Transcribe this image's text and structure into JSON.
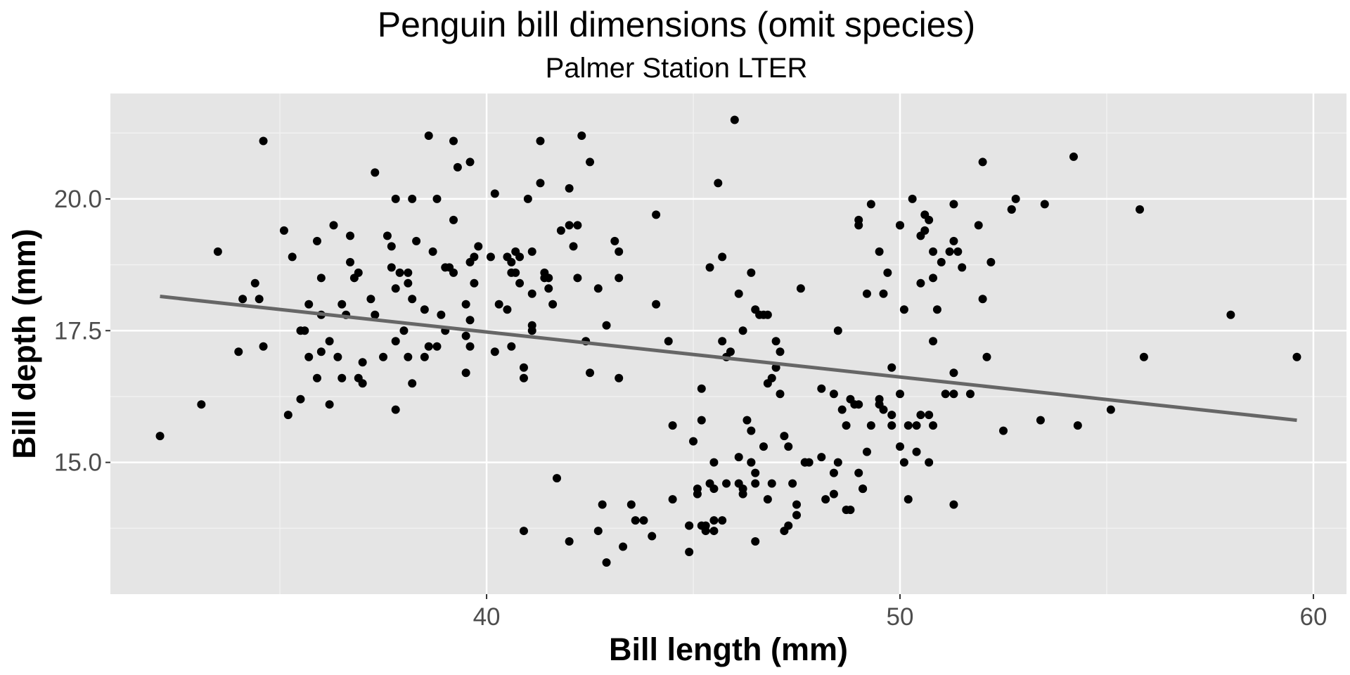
{
  "chart_data": {
    "type": "scatter",
    "title": "Penguin bill dimensions (omit species)",
    "subtitle": "Palmer Station LTER",
    "xlabel": "Bill length (mm)",
    "ylabel": "Bill depth (mm)",
    "xlim": [
      30.9,
      60.8
    ],
    "ylim": [
      12.5,
      22.0
    ],
    "x_ticks": [
      40,
      50,
      60
    ],
    "x_tick_labels": [
      "40",
      "50",
      "60"
    ],
    "y_ticks": [
      15.0,
      17.5,
      20.0
    ],
    "y_tick_labels": [
      "15.0",
      "17.5",
      "20.0"
    ],
    "grid": true,
    "colors": {
      "panel_background": "#e5e5e5",
      "grid_major": "#ffffff",
      "grid_minor": "#f2f2f2",
      "points": "#000000",
      "trend_line": "#666666",
      "tick_text": "#4d4d4d",
      "tick_mark": "#333333"
    },
    "trend_line": {
      "x": [
        32.1,
        59.6
      ],
      "y": [
        18.15,
        15.8
      ]
    },
    "points": [
      [
        32.1,
        15.5
      ],
      [
        33.1,
        16.1
      ],
      [
        33.5,
        19.0
      ],
      [
        34.0,
        17.1
      ],
      [
        34.1,
        18.1
      ],
      [
        34.4,
        18.4
      ],
      [
        34.5,
        18.1
      ],
      [
        34.6,
        21.1
      ],
      [
        34.6,
        17.2
      ],
      [
        35.1,
        19.4
      ],
      [
        35.2,
        15.9
      ],
      [
        35.3,
        18.9
      ],
      [
        35.5,
        16.2
      ],
      [
        35.5,
        17.5
      ],
      [
        35.6,
        17.5
      ],
      [
        35.7,
        18.0
      ],
      [
        35.7,
        17.0
      ],
      [
        35.9,
        19.2
      ],
      [
        36.0,
        18.5
      ],
      [
        36.0,
        17.1
      ],
      [
        36.0,
        17.8
      ],
      [
        36.2,
        16.1
      ],
      [
        36.2,
        17.3
      ],
      [
        36.3,
        19.5
      ],
      [
        36.4,
        17.0
      ],
      [
        36.5,
        18.0
      ],
      [
        36.6,
        17.8
      ],
      [
        36.7,
        18.8
      ],
      [
        36.7,
        19.3
      ],
      [
        36.8,
        18.5
      ],
      [
        36.9,
        18.6
      ],
      [
        37.0,
        16.9
      ],
      [
        37.0,
        16.5
      ],
      [
        37.2,
        18.1
      ],
      [
        37.3,
        20.5
      ],
      [
        37.3,
        17.8
      ],
      [
        37.6,
        19.3
      ],
      [
        37.7,
        18.7
      ],
      [
        37.7,
        19.1
      ],
      [
        37.8,
        20.0
      ],
      [
        37.8,
        18.3
      ],
      [
        37.8,
        17.3
      ],
      [
        37.9,
        18.6
      ],
      [
        38.1,
        18.6
      ],
      [
        38.1,
        17.0
      ],
      [
        38.2,
        18.1
      ],
      [
        38.2,
        20.0
      ],
      [
        38.3,
        19.2
      ],
      [
        38.5,
        17.9
      ],
      [
        38.6,
        21.2
      ],
      [
        38.6,
        17.2
      ],
      [
        38.7,
        19.0
      ],
      [
        38.8,
        20.0
      ],
      [
        38.8,
        17.2
      ],
      [
        38.9,
        17.8
      ],
      [
        39.0,
        17.5
      ],
      [
        39.0,
        18.7
      ],
      [
        39.1,
        18.7
      ],
      [
        39.2,
        19.6
      ],
      [
        39.2,
        21.1
      ],
      [
        39.3,
        20.6
      ],
      [
        39.5,
        17.4
      ],
      [
        39.5,
        16.7
      ],
      [
        39.6,
        20.7
      ],
      [
        39.6,
        17.7
      ],
      [
        39.7,
        18.9
      ],
      [
        39.8,
        19.1
      ],
      [
        40.1,
        18.9
      ],
      [
        40.2,
        17.1
      ],
      [
        40.2,
        20.1
      ],
      [
        40.3,
        18.0
      ],
      [
        40.5,
        17.9
      ],
      [
        40.6,
        18.8
      ],
      [
        40.6,
        17.2
      ],
      [
        40.7,
        19.0
      ],
      [
        40.8,
        18.4
      ],
      [
        40.9,
        16.6
      ],
      [
        40.9,
        13.7
      ],
      [
        41.0,
        20.0
      ],
      [
        41.1,
        18.2
      ],
      [
        41.1,
        17.5
      ],
      [
        41.1,
        19.0
      ],
      [
        41.3,
        20.3
      ],
      [
        41.3,
        21.1
      ],
      [
        41.4,
        18.6
      ],
      [
        41.5,
        18.5
      ],
      [
        41.6,
        18.0
      ],
      [
        41.7,
        14.7
      ],
      [
        41.8,
        19.4
      ],
      [
        42.0,
        20.2
      ],
      [
        42.0,
        13.5
      ],
      [
        42.1,
        19.1
      ],
      [
        42.2,
        18.5
      ],
      [
        42.3,
        21.2
      ],
      [
        42.4,
        17.3
      ],
      [
        42.5,
        20.7
      ],
      [
        42.5,
        16.7
      ],
      [
        42.7,
        13.7
      ],
      [
        42.7,
        18.3
      ],
      [
        42.8,
        14.2
      ],
      [
        42.9,
        13.1
      ],
      [
        42.9,
        17.6
      ],
      [
        43.2,
        19.0
      ],
      [
        43.2,
        18.5
      ],
      [
        43.2,
        16.6
      ],
      [
        43.3,
        13.4
      ],
      [
        43.5,
        14.2
      ],
      [
        43.6,
        13.9
      ],
      [
        43.8,
        13.9
      ],
      [
        44.0,
        13.6
      ],
      [
        44.1,
        19.7
      ],
      [
        44.1,
        18.0
      ],
      [
        44.4,
        17.3
      ],
      [
        44.5,
        15.7
      ],
      [
        44.5,
        14.3
      ],
      [
        44.9,
        13.8
      ],
      [
        44.9,
        13.3
      ],
      [
        45.0,
        15.4
      ],
      [
        45.1,
        14.5
      ],
      [
        45.2,
        15.8
      ],
      [
        45.2,
        13.8
      ],
      [
        45.2,
        16.4
      ],
      [
        45.3,
        13.8
      ],
      [
        45.4,
        14.6
      ],
      [
        45.4,
        18.7
      ],
      [
        45.5,
        13.7
      ],
      [
        45.5,
        15.0
      ],
      [
        45.6,
        20.3
      ],
      [
        45.7,
        17.3
      ],
      [
        45.7,
        13.9
      ],
      [
        45.8,
        14.6
      ],
      [
        45.9,
        17.1
      ],
      [
        46.0,
        21.5
      ],
      [
        46.1,
        15.1
      ],
      [
        46.1,
        18.2
      ],
      [
        46.2,
        14.5
      ],
      [
        46.2,
        17.5
      ],
      [
        46.4,
        15.0
      ],
      [
        46.4,
        15.6
      ],
      [
        46.5,
        13.5
      ],
      [
        46.5,
        14.8
      ],
      [
        46.6,
        17.8
      ],
      [
        46.7,
        15.3
      ],
      [
        46.8,
        16.5
      ],
      [
        46.9,
        16.6
      ],
      [
        47.0,
        17.3
      ],
      [
        47.2,
        13.7
      ],
      [
        47.3,
        15.3
      ],
      [
        47.4,
        14.6
      ],
      [
        47.5,
        14.0
      ],
      [
        47.6,
        18.3
      ],
      [
        47.7,
        15.0
      ],
      [
        48.1,
        16.4
      ],
      [
        48.2,
        14.3
      ],
      [
        48.4,
        16.3
      ],
      [
        48.5,
        17.5
      ],
      [
        48.6,
        16.0
      ],
      [
        48.7,
        14.1
      ],
      [
        48.8,
        16.2
      ],
      [
        49.0,
        16.1
      ],
      [
        49.1,
        14.5
      ],
      [
        49.2,
        18.2
      ],
      [
        49.3,
        19.9
      ],
      [
        49.5,
        16.2
      ],
      [
        49.6,
        18.2
      ],
      [
        49.7,
        18.6
      ],
      [
        49.8,
        16.8
      ],
      [
        50.0,
        15.3
      ],
      [
        50.0,
        19.5
      ],
      [
        50.1,
        17.9
      ],
      [
        50.2,
        14.3
      ],
      [
        50.4,
        15.7
      ],
      [
        50.5,
        18.4
      ],
      [
        50.6,
        19.4
      ],
      [
        50.8,
        17.3
      ],
      [
        50.9,
        17.9
      ],
      [
        51.0,
        18.8
      ],
      [
        51.1,
        16.3
      ],
      [
        51.3,
        19.9
      ],
      [
        51.3,
        14.2
      ],
      [
        51.5,
        18.7
      ],
      [
        51.7,
        16.3
      ],
      [
        51.9,
        19.5
      ],
      [
        52.0,
        18.1
      ],
      [
        52.0,
        20.7
      ],
      [
        52.1,
        17.0
      ],
      [
        52.2,
        18.8
      ],
      [
        52.5,
        15.6
      ],
      [
        52.7,
        19.8
      ],
      [
        52.8,
        20.0
      ],
      [
        53.4,
        15.8
      ],
      [
        53.5,
        19.9
      ],
      [
        54.2,
        20.8
      ],
      [
        54.3,
        15.7
      ],
      [
        55.1,
        16.0
      ],
      [
        55.8,
        19.8
      ],
      [
        55.9,
        17.0
      ],
      [
        58.0,
        17.8
      ],
      [
        59.6,
        17.0
      ],
      [
        36.9,
        16.6
      ],
      [
        37.8,
        16.0
      ],
      [
        38.2,
        16.5
      ],
      [
        39.2,
        18.6
      ],
      [
        39.6,
        18.8
      ],
      [
        40.5,
        18.9
      ],
      [
        40.8,
        18.9
      ],
      [
        41.4,
        18.5
      ],
      [
        42.2,
        19.5
      ],
      [
        38.5,
        17.0
      ],
      [
        39.5,
        18.0
      ],
      [
        40.7,
        18.6
      ],
      [
        36.5,
        16.6
      ],
      [
        37.5,
        17.0
      ],
      [
        38.0,
        17.5
      ],
      [
        39.7,
        18.4
      ],
      [
        40.9,
        16.8
      ],
      [
        41.1,
        17.6
      ],
      [
        42.0,
        19.5
      ],
      [
        43.1,
        19.2
      ],
      [
        35.9,
        16.6
      ],
      [
        38.1,
        18.4
      ],
      [
        39.6,
        17.2
      ],
      [
        40.6,
        18.6
      ],
      [
        41.5,
        18.3
      ],
      [
        44.9,
        13.8
      ],
      [
        45.5,
        14.5
      ],
      [
        46.9,
        14.6
      ],
      [
        47.7,
        15.0
      ],
      [
        48.4,
        14.8
      ],
      [
        49.3,
        15.7
      ],
      [
        49.8,
        15.9
      ],
      [
        50.4,
        15.2
      ],
      [
        46.3,
        15.8
      ],
      [
        47.2,
        15.5
      ],
      [
        48.5,
        15.0
      ],
      [
        49.5,
        16.1
      ],
      [
        50.7,
        15.0
      ],
      [
        45.1,
        14.4
      ],
      [
        46.5,
        14.6
      ],
      [
        48.7,
        15.7
      ],
      [
        49.0,
        14.8
      ],
      [
        50.1,
        15.0
      ],
      [
        45.3,
        13.7
      ],
      [
        46.2,
        14.4
      ],
      [
        47.5,
        14.2
      ],
      [
        48.1,
        15.1
      ],
      [
        49.1,
        14.5
      ],
      [
        50.0,
        16.3
      ],
      [
        46.8,
        14.3
      ],
      [
        47.8,
        15.0
      ],
      [
        48.4,
        14.4
      ],
      [
        49.6,
        16.0
      ],
      [
        50.5,
        15.9
      ],
      [
        45.5,
        13.9
      ],
      [
        46.1,
        14.6
      ],
      [
        47.3,
        13.8
      ],
      [
        48.8,
        14.1
      ],
      [
        49.2,
        15.2
      ],
      [
        50.2,
        15.7
      ],
      [
        46.5,
        17.9
      ],
      [
        46.4,
        18.6
      ],
      [
        45.7,
        18.9
      ],
      [
        45.8,
        17.0
      ],
      [
        46.7,
        17.8
      ],
      [
        47.1,
        17.1
      ],
      [
        49.0,
        19.5
      ],
      [
        49.0,
        19.6
      ],
      [
        49.5,
        19.0
      ],
      [
        50.0,
        19.5
      ],
      [
        50.3,
        20.0
      ],
      [
        50.6,
        19.7
      ],
      [
        50.7,
        19.6
      ],
      [
        51.2,
        19.0
      ],
      [
        51.3,
        19.2
      ],
      [
        51.4,
        19.0
      ],
      [
        52.7,
        19.8
      ],
      [
        50.8,
        19.0
      ],
      [
        50.8,
        18.5
      ],
      [
        50.5,
        19.3
      ],
      [
        50.8,
        15.7
      ],
      [
        51.3,
        16.7
      ],
      [
        51.3,
        16.3
      ],
      [
        50.7,
        15.9
      ],
      [
        49.8,
        15.7
      ],
      [
        48.9,
        16.1
      ],
      [
        47.1,
        16.3
      ],
      [
        47.0,
        16.8
      ],
      [
        46.8,
        17.8
      ],
      [
        46.4,
        15.0
      ]
    ]
  }
}
